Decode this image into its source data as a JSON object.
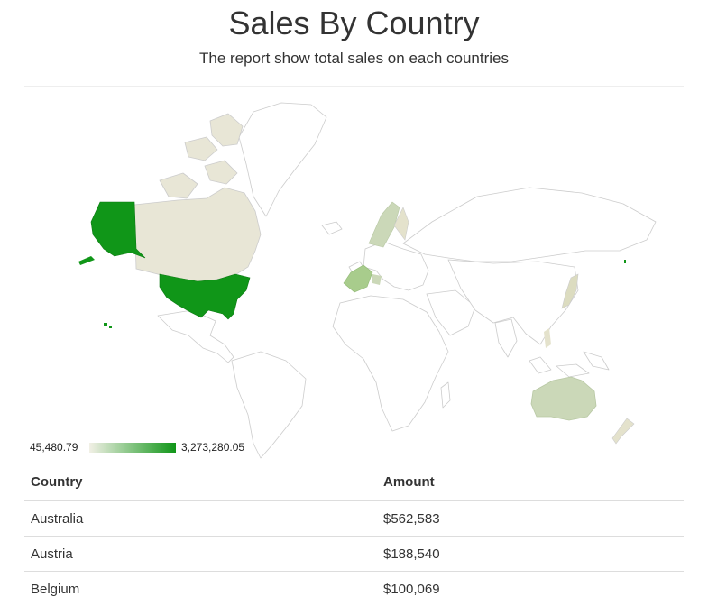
{
  "header": {
    "title": "Sales By Country",
    "subtitle": "The report show total sales on each countries"
  },
  "map": {
    "type": "geo-choropleth",
    "color_low": "#f2f0e6",
    "color_high": "#109618",
    "regions": [
      {
        "name": "United States",
        "level": 1.0
      },
      {
        "name": "Canada",
        "level": 0.06
      },
      {
        "name": "Australia",
        "level": 0.16
      },
      {
        "name": "France",
        "level": 0.3
      },
      {
        "name": "Norway",
        "level": 0.1
      },
      {
        "name": "Sweden",
        "level": 0.08
      },
      {
        "name": "Finland",
        "level": 0.05
      },
      {
        "name": "Japan",
        "level": 0.07
      },
      {
        "name": "New Zealand",
        "level": 0.04
      },
      {
        "name": "Philippines",
        "level": 0.02
      }
    ]
  },
  "legend": {
    "min": "45,480.79",
    "max": "3,273,280.05"
  },
  "table": {
    "headers": {
      "country": "Country",
      "amount": "Amount"
    },
    "rows": [
      {
        "country": "Australia",
        "amount": "$562,583"
      },
      {
        "country": "Austria",
        "amount": "$188,540"
      },
      {
        "country": "Belgium",
        "amount": "$100,069"
      }
    ]
  }
}
